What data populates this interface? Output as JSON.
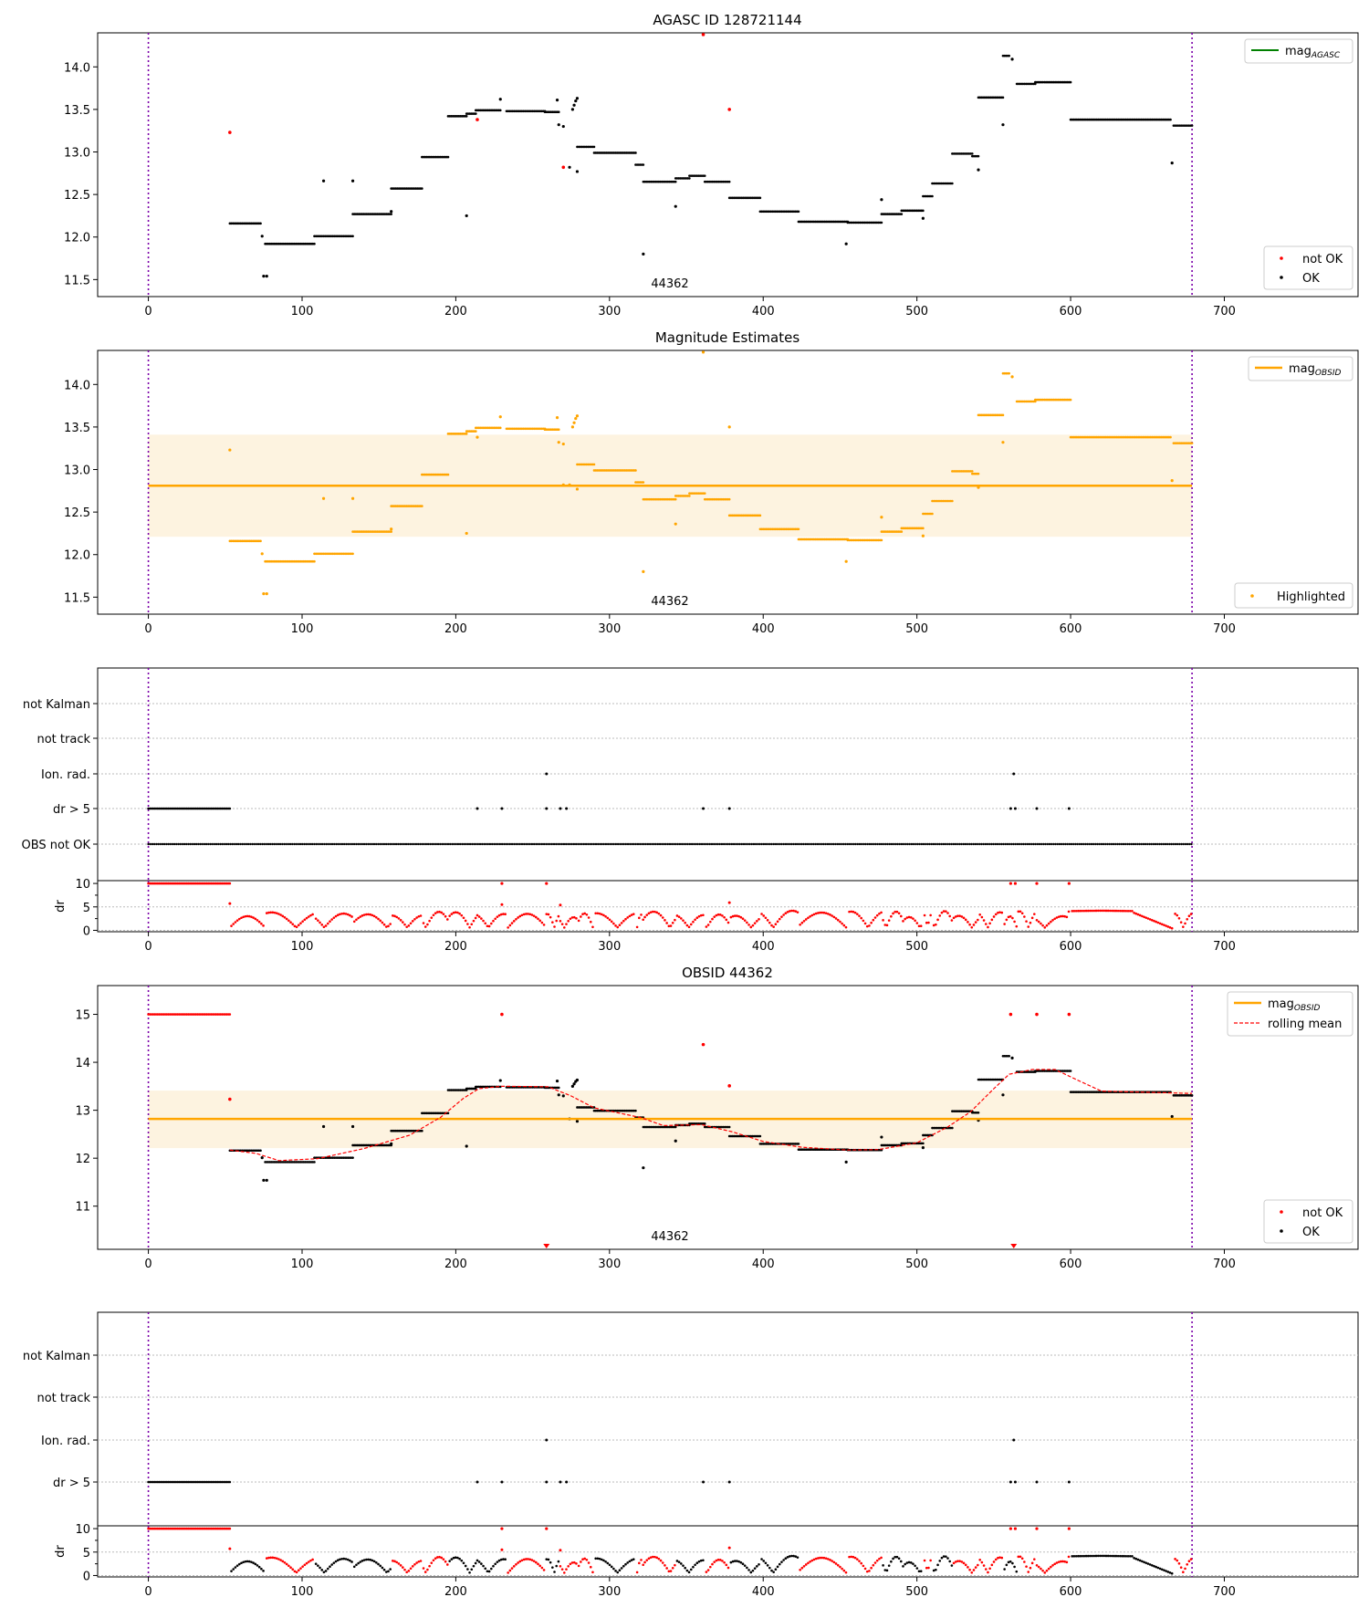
{
  "figure": {
    "colors": {
      "ok": "#000000",
      "not_ok": "#ff0000",
      "obs_mag": "#ffa500",
      "band": "#fdf3e0",
      "agasc": "#008000",
      "vline": "#7b00a8",
      "rolling": "#ff0000"
    },
    "x_ticks": [
      0,
      100,
      200,
      300,
      400,
      500,
      600,
      700
    ],
    "xlim": [
      -33,
      787
    ],
    "vlines": [
      0,
      679
    ]
  },
  "chart_data": [
    {
      "type": "scatter",
      "panel": "agasc",
      "title": "AGASC ID 128721144",
      "xlabel": "",
      "ylabel": "",
      "ylim": [
        11.3,
        14.4
      ],
      "y_ticks": [
        "11.5",
        "12.0",
        "12.5",
        "13.0",
        "13.5",
        "14.0"
      ],
      "annotation": "44362",
      "legend_top": [
        {
          "label": "mag",
          "sub": "AGASC",
          "style": "agasc-line"
        }
      ],
      "legend_bottom": [
        {
          "label": "not OK",
          "style": "not-ok-dot"
        },
        {
          "label": "OK",
          "style": "ok-dot"
        }
      ],
      "segments": [
        {
          "x": [
            53,
            73
          ],
          "y": 12.16
        },
        {
          "x": [
            76,
            108
          ],
          "y": 11.92
        },
        {
          "x": [
            108,
            133
          ],
          "y": 12.01
        },
        {
          "x": [
            133,
            158
          ],
          "y": 12.27
        },
        {
          "x": [
            158,
            178
          ],
          "y": 12.57
        },
        {
          "x": [
            178,
            195
          ],
          "y": 12.94
        },
        {
          "x": [
            195,
            207
          ],
          "y": 13.42
        },
        {
          "x": [
            207,
            213
          ],
          "y": 13.45
        },
        {
          "x": [
            213,
            229
          ],
          "y": 13.49
        },
        {
          "x": [
            233,
            258
          ],
          "y": 13.48
        },
        {
          "x": [
            258,
            267
          ],
          "y": 13.47
        },
        {
          "x": [
            279,
            290
          ],
          "y": 13.06
        },
        {
          "x": [
            290,
            317
          ],
          "y": 12.99
        },
        {
          "x": [
            317,
            322
          ],
          "y": 12.85
        },
        {
          "x": [
            322,
            343
          ],
          "y": 12.65
        },
        {
          "x": [
            343,
            352
          ],
          "y": 12.69
        },
        {
          "x": [
            352,
            362
          ],
          "y": 12.72
        },
        {
          "x": [
            362,
            378
          ],
          "y": 12.65
        },
        {
          "x": [
            378,
            398
          ],
          "y": 12.46
        },
        {
          "x": [
            398,
            423
          ],
          "y": 12.3
        },
        {
          "x": [
            423,
            455
          ],
          "y": 12.18
        },
        {
          "x": [
            455,
            477
          ],
          "y": 12.17
        },
        {
          "x": [
            477,
            490
          ],
          "y": 12.27
        },
        {
          "x": [
            490,
            504
          ],
          "y": 12.31
        },
        {
          "x": [
            504,
            510
          ],
          "y": 12.48
        },
        {
          "x": [
            510,
            523
          ],
          "y": 12.63
        },
        {
          "x": [
            523,
            536
          ],
          "y": 12.98
        },
        {
          "x": [
            536,
            540
          ],
          "y": 12.95
        },
        {
          "x": [
            540,
            556
          ],
          "y": 13.64
        },
        {
          "x": [
            556,
            560
          ],
          "y": 14.13
        },
        {
          "x": [
            565,
            577
          ],
          "y": 13.8
        },
        {
          "x": [
            577,
            600
          ],
          "y": 13.82
        },
        {
          "x": [
            600,
            665
          ],
          "y": 13.38
        },
        {
          "x": [
            667,
            679
          ],
          "y": 13.31
        }
      ],
      "ok_points": [
        {
          "x": 74,
          "y": 12.01
        },
        {
          "x": 75,
          "y": 11.54
        },
        {
          "x": 77,
          "y": 11.54
        },
        {
          "x": 114,
          "y": 12.66
        },
        {
          "x": 133,
          "y": 12.66
        },
        {
          "x": 158,
          "y": 12.3
        },
        {
          "x": 207,
          "y": 12.25
        },
        {
          "x": 229,
          "y": 13.62
        },
        {
          "x": 266,
          "y": 13.61
        },
        {
          "x": 267,
          "y": 13.32
        },
        {
          "x": 270,
          "y": 13.3
        },
        {
          "x": 274,
          "y": 12.82
        },
        {
          "x": 276,
          "y": 13.5
        },
        {
          "x": 277,
          "y": 13.55
        },
        {
          "x": 278,
          "y": 13.6
        },
        {
          "x": 279,
          "y": 13.63
        },
        {
          "x": 279,
          "y": 12.77
        },
        {
          "x": 322,
          "y": 11.8
        },
        {
          "x": 343,
          "y": 12.36
        },
        {
          "x": 454,
          "y": 11.92
        },
        {
          "x": 477,
          "y": 12.44
        },
        {
          "x": 504,
          "y": 12.22
        },
        {
          "x": 540,
          "y": 12.79
        },
        {
          "x": 556,
          "y": 13.32
        },
        {
          "x": 562,
          "y": 14.09
        },
        {
          "x": 666,
          "y": 12.87
        }
      ],
      "not_ok_points": [
        {
          "x": 53,
          "y": 13.23
        },
        {
          "x": 214,
          "y": 13.38
        },
        {
          "x": 270,
          "y": 12.82
        },
        {
          "x": 361,
          "y": 14.38
        },
        {
          "x": 378,
          "y": 13.5
        }
      ]
    },
    {
      "type": "scatter",
      "panel": "magnitude-estimates",
      "title": "Magnitude Estimates",
      "xlabel": "",
      "ylabel": "",
      "ylim": [
        11.3,
        14.4
      ],
      "y_ticks": [
        "11.5",
        "12.0",
        "12.5",
        "13.0",
        "13.5",
        "14.0"
      ],
      "annotation": "44362",
      "mean": 12.81,
      "band": [
        12.21,
        13.41
      ],
      "legend_top": [
        {
          "label": "mag",
          "sub": "OBSID",
          "style": "obs-line"
        }
      ],
      "legend_bottom": [
        {
          "label": "Highlighted",
          "style": "highlight-dot"
        }
      ]
    },
    {
      "type": "scatter",
      "panel": "flags-1",
      "categories": [
        "not Kalman",
        "not track",
        "Ion. rad.",
        "dr > 5",
        "OBS not OK"
      ],
      "ion_rad_x": [
        259,
        563
      ],
      "dr5_runs": [
        [
          0,
          53
        ]
      ],
      "dr5_x": [
        214,
        230,
        259,
        268,
        272,
        361,
        378,
        561,
        564,
        578,
        599
      ],
      "obs_not_ok_runs": [
        [
          0,
          679
        ]
      ],
      "dr": {
        "ylabel": "dr",
        "ylim": [
          -0.3,
          10.6
        ],
        "y_ticks": [
          "0",
          "5",
          "10"
        ],
        "saturated_runs": [
          [
            0,
            53
          ]
        ],
        "saturated_x": [
          230,
          259,
          561,
          564,
          578,
          599
        ]
      }
    },
    {
      "type": "scatter",
      "panel": "obsid",
      "title": "OBSID 44362",
      "xlabel": "",
      "ylabel": "",
      "ylim": [
        10.1,
        15.6
      ],
      "y_ticks": [
        "11",
        "12",
        "13",
        "14",
        "15"
      ],
      "annotation": "44362",
      "mean": 12.82,
      "band": [
        12.21,
        13.41
      ],
      "legend_top": [
        {
          "label": "mag",
          "sub": "OBSID",
          "style": "obs-line"
        },
        {
          "label": "rolling mean",
          "style": "rolling-dash"
        }
      ],
      "legend_bottom": [
        {
          "label": "not OK",
          "style": "not-ok-dot"
        },
        {
          "label": "OK",
          "style": "ok-dot"
        }
      ],
      "saturated_runs": [
        [
          0,
          53
        ]
      ],
      "saturated_x": [
        230,
        561,
        578,
        599
      ],
      "not_ok_extra": [
        {
          "x": 53,
          "y": 13.23
        },
        {
          "x": 361,
          "y": 14.37
        },
        {
          "x": 378,
          "y": 13.51
        }
      ],
      "clipped_markers_x": [
        259,
        563
      ],
      "rolling_mean": [
        [
          53,
          12.17
        ],
        [
          70,
          12.1
        ],
        [
          85,
          11.95
        ],
        [
          110,
          11.99
        ],
        [
          140,
          12.2
        ],
        [
          170,
          12.48
        ],
        [
          190,
          12.85
        ],
        [
          205,
          13.25
        ],
        [
          215,
          13.45
        ],
        [
          230,
          13.5
        ],
        [
          260,
          13.49
        ],
        [
          275,
          13.3
        ],
        [
          290,
          13.05
        ],
        [
          320,
          12.85
        ],
        [
          335,
          12.68
        ],
        [
          360,
          12.7
        ],
        [
          380,
          12.55
        ],
        [
          400,
          12.35
        ],
        [
          425,
          12.23
        ],
        [
          455,
          12.17
        ],
        [
          475,
          12.18
        ],
        [
          500,
          12.32
        ],
        [
          520,
          12.65
        ],
        [
          535,
          12.97
        ],
        [
          550,
          13.45
        ],
        [
          560,
          13.75
        ],
        [
          575,
          13.85
        ],
        [
          590,
          13.85
        ],
        [
          605,
          13.62
        ],
        [
          620,
          13.4
        ],
        [
          679,
          13.35
        ]
      ]
    },
    {
      "type": "scatter",
      "panel": "flags-2",
      "categories": [
        "not Kalman",
        "not track",
        "Ion. rad.",
        "dr > 5"
      ],
      "ion_rad_x": [
        259,
        563
      ],
      "dr5_runs": [
        [
          0,
          53
        ]
      ],
      "dr5_x": [
        214,
        230,
        259,
        268,
        272,
        361,
        378,
        561,
        564,
        578,
        599
      ],
      "dr": {
        "ylabel": "dr",
        "ylim": [
          -0.3,
          10.6
        ],
        "y_ticks": [
          "0",
          "5",
          "10"
        ],
        "saturated_runs": [
          [
            0,
            53
          ]
        ],
        "saturated_x": [
          230,
          259,
          561,
          564,
          578,
          599
        ]
      }
    }
  ]
}
